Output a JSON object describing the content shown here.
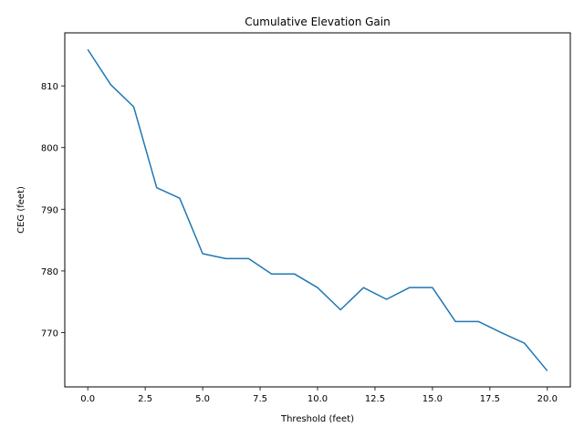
{
  "chart_data": {
    "type": "line",
    "title": "Cumulative Elevation Gain",
    "xlabel": "Threshold (feet)",
    "ylabel": "CEG (feet)",
    "xlim": [
      -1.0,
      21.0
    ],
    "ylim": [
      761.2,
      818.6
    ],
    "x_ticks": [
      0.0,
      2.5,
      5.0,
      7.5,
      10.0,
      12.5,
      15.0,
      17.5,
      20.0
    ],
    "x_tick_labels": [
      "0.0",
      "2.5",
      "5.0",
      "7.5",
      "10.0",
      "12.5",
      "15.0",
      "17.5",
      "20.0"
    ],
    "y_ticks": [
      770,
      780,
      790,
      800,
      810
    ],
    "y_tick_labels": [
      "770",
      "780",
      "790",
      "800",
      "810"
    ],
    "grid": false,
    "series": [
      {
        "color": "#1f77b4",
        "x": [
          0,
          1,
          2,
          3,
          4,
          5,
          6,
          7,
          8,
          9,
          10,
          11,
          12,
          13,
          14,
          15,
          16,
          17,
          18,
          19,
          20
        ],
        "y": [
          815.9,
          810.2,
          806.6,
          793.5,
          791.8,
          782.8,
          782.0,
          782.0,
          779.5,
          779.5,
          777.3,
          773.7,
          777.3,
          775.4,
          777.3,
          777.3,
          771.8,
          771.8,
          770.0,
          768.3,
          763.8
        ]
      }
    ]
  }
}
